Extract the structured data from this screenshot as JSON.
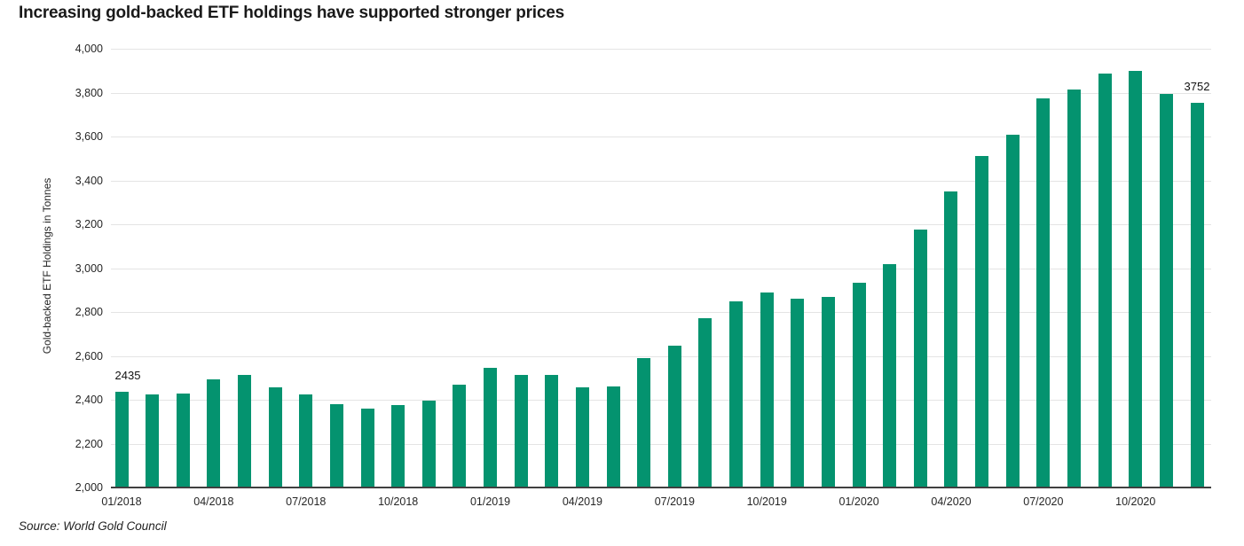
{
  "page": {
    "title": "Increasing gold-backed ETF holdings have supported stronger prices",
    "source": "Source: World Gold Council"
  },
  "chart_data": {
    "type": "bar",
    "title": "Increasing gold-backed ETF holdings have supported stronger prices",
    "xlabel": "",
    "ylabel": "Gold-backed ETF Holdings in Tonnes",
    "ylim": [
      2000,
      4000
    ],
    "ytick_step": 200,
    "ytick_values": [
      2000,
      2200,
      2400,
      2600,
      2800,
      3000,
      3200,
      3400,
      3600,
      3800,
      4000
    ],
    "ytick_labels": [
      "2,000",
      "2,200",
      "2,400",
      "2,600",
      "2,800",
      "3,000",
      "3,200",
      "3,400",
      "3,600",
      "3,800",
      "4,000"
    ],
    "categories": [
      "01/2018",
      "02/2018",
      "03/2018",
      "04/2018",
      "05/2018",
      "06/2018",
      "07/2018",
      "08/2018",
      "09/2018",
      "10/2018",
      "11/2018",
      "12/2018",
      "01/2019",
      "02/2019",
      "03/2019",
      "04/2019",
      "05/2019",
      "06/2019",
      "07/2019",
      "08/2019",
      "09/2019",
      "10/2019",
      "11/2019",
      "12/2019",
      "01/2020",
      "02/2020",
      "03/2020",
      "04/2020",
      "05/2020",
      "06/2020",
      "07/2020",
      "08/2020",
      "09/2020",
      "10/2020",
      "11/2020",
      "12/2020"
    ],
    "values": [
      2435,
      2425,
      2430,
      2495,
      2515,
      2455,
      2425,
      2380,
      2360,
      2375,
      2395,
      2470,
      2545,
      2515,
      2515,
      2455,
      2460,
      2590,
      2645,
      2770,
      2850,
      2890,
      2860,
      2870,
      2935,
      3020,
      3175,
      3350,
      3510,
      3610,
      3775,
      3815,
      3885,
      3900,
      3795,
      3752
    ],
    "xtick_every": 3,
    "xtick_shown": [
      "01/2018",
      "04/2018",
      "07/2018",
      "10/2018",
      "01/2019",
      "04/2019",
      "07/2019",
      "10/2019",
      "01/2020",
      "04/2020",
      "07/2020",
      "10/2020"
    ],
    "point_labels": [
      {
        "index": 0,
        "text": "2435",
        "align": "left"
      },
      {
        "index": 35,
        "text": "3752",
        "align": "center"
      }
    ],
    "grid": true,
    "legend": "none",
    "colors": {
      "bar": "#04936F",
      "gridline": "#e4e4e4",
      "axis_line": "#404040",
      "text": "#262626",
      "background": "#ffffff"
    },
    "source": "Source: World Gold Council"
  }
}
